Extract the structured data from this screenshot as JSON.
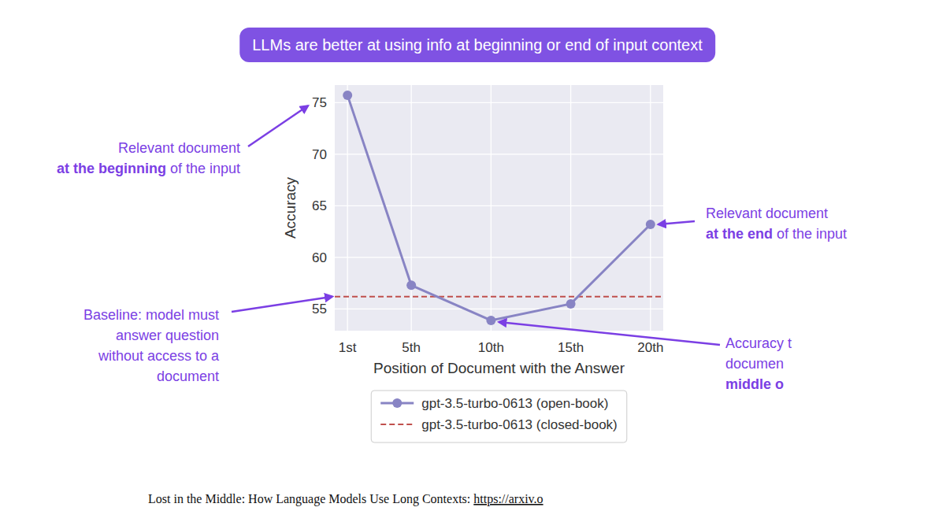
{
  "chart_data": {
    "type": "line",
    "title": "LLMs are better at using info at beginning or end of input context",
    "x_label": "Position of Document with the Answer",
    "y_label": "Accuracy",
    "x": [
      1,
      5,
      10,
      15,
      20
    ],
    "xlim": [
      0.2,
      20.8
    ],
    "xticks": [
      {
        "value": 1,
        "label": "1st"
      },
      {
        "value": 5,
        "label": "5th"
      },
      {
        "value": 10,
        "label": "10th"
      },
      {
        "value": 15,
        "label": "15th"
      },
      {
        "value": 20,
        "label": "20th"
      }
    ],
    "ylim": [
      52.9,
      76.7
    ],
    "yticks": [
      55,
      60,
      65,
      70,
      75
    ],
    "grid": true,
    "legend": "bottom",
    "series": [
      {
        "name": "gpt-3.5-turbo-0613 (open-book)",
        "color": "#8884c4",
        "marker": "circle",
        "line_style": "solid",
        "values": [
          75.7,
          57.3,
          53.9,
          55.5,
          63.2
        ]
      },
      {
        "name": "gpt-3.5-turbo-0613 (closed-book)",
        "color": "#c0504d",
        "line_style": "dashed",
        "x": [
          0.2,
          20.8
        ],
        "values": [
          56.2,
          56.2
        ]
      }
    ],
    "annotations": [
      {
        "lines": [
          [
            "Relevant document"
          ],
          [
            "at the beginning",
            " of the input"
          ]
        ]
      },
      {
        "lines": [
          [
            "Relevant document"
          ],
          [
            "at the end",
            " of the input"
          ]
        ]
      },
      {
        "lines": [
          [
            "Baseline: model must"
          ],
          [
            "answer question"
          ],
          [
            "without access to a"
          ],
          [
            "document"
          ]
        ]
      },
      {
        "lines": [
          [
            "Accuracy t"
          ],
          [
            "documen"
          ],
          [
            "middle o"
          ]
        ]
      }
    ],
    "source": [
      "Lost in the Middle: How Language Models Use Long Contexts: ",
      "https://arxiv.o"
    ]
  }
}
